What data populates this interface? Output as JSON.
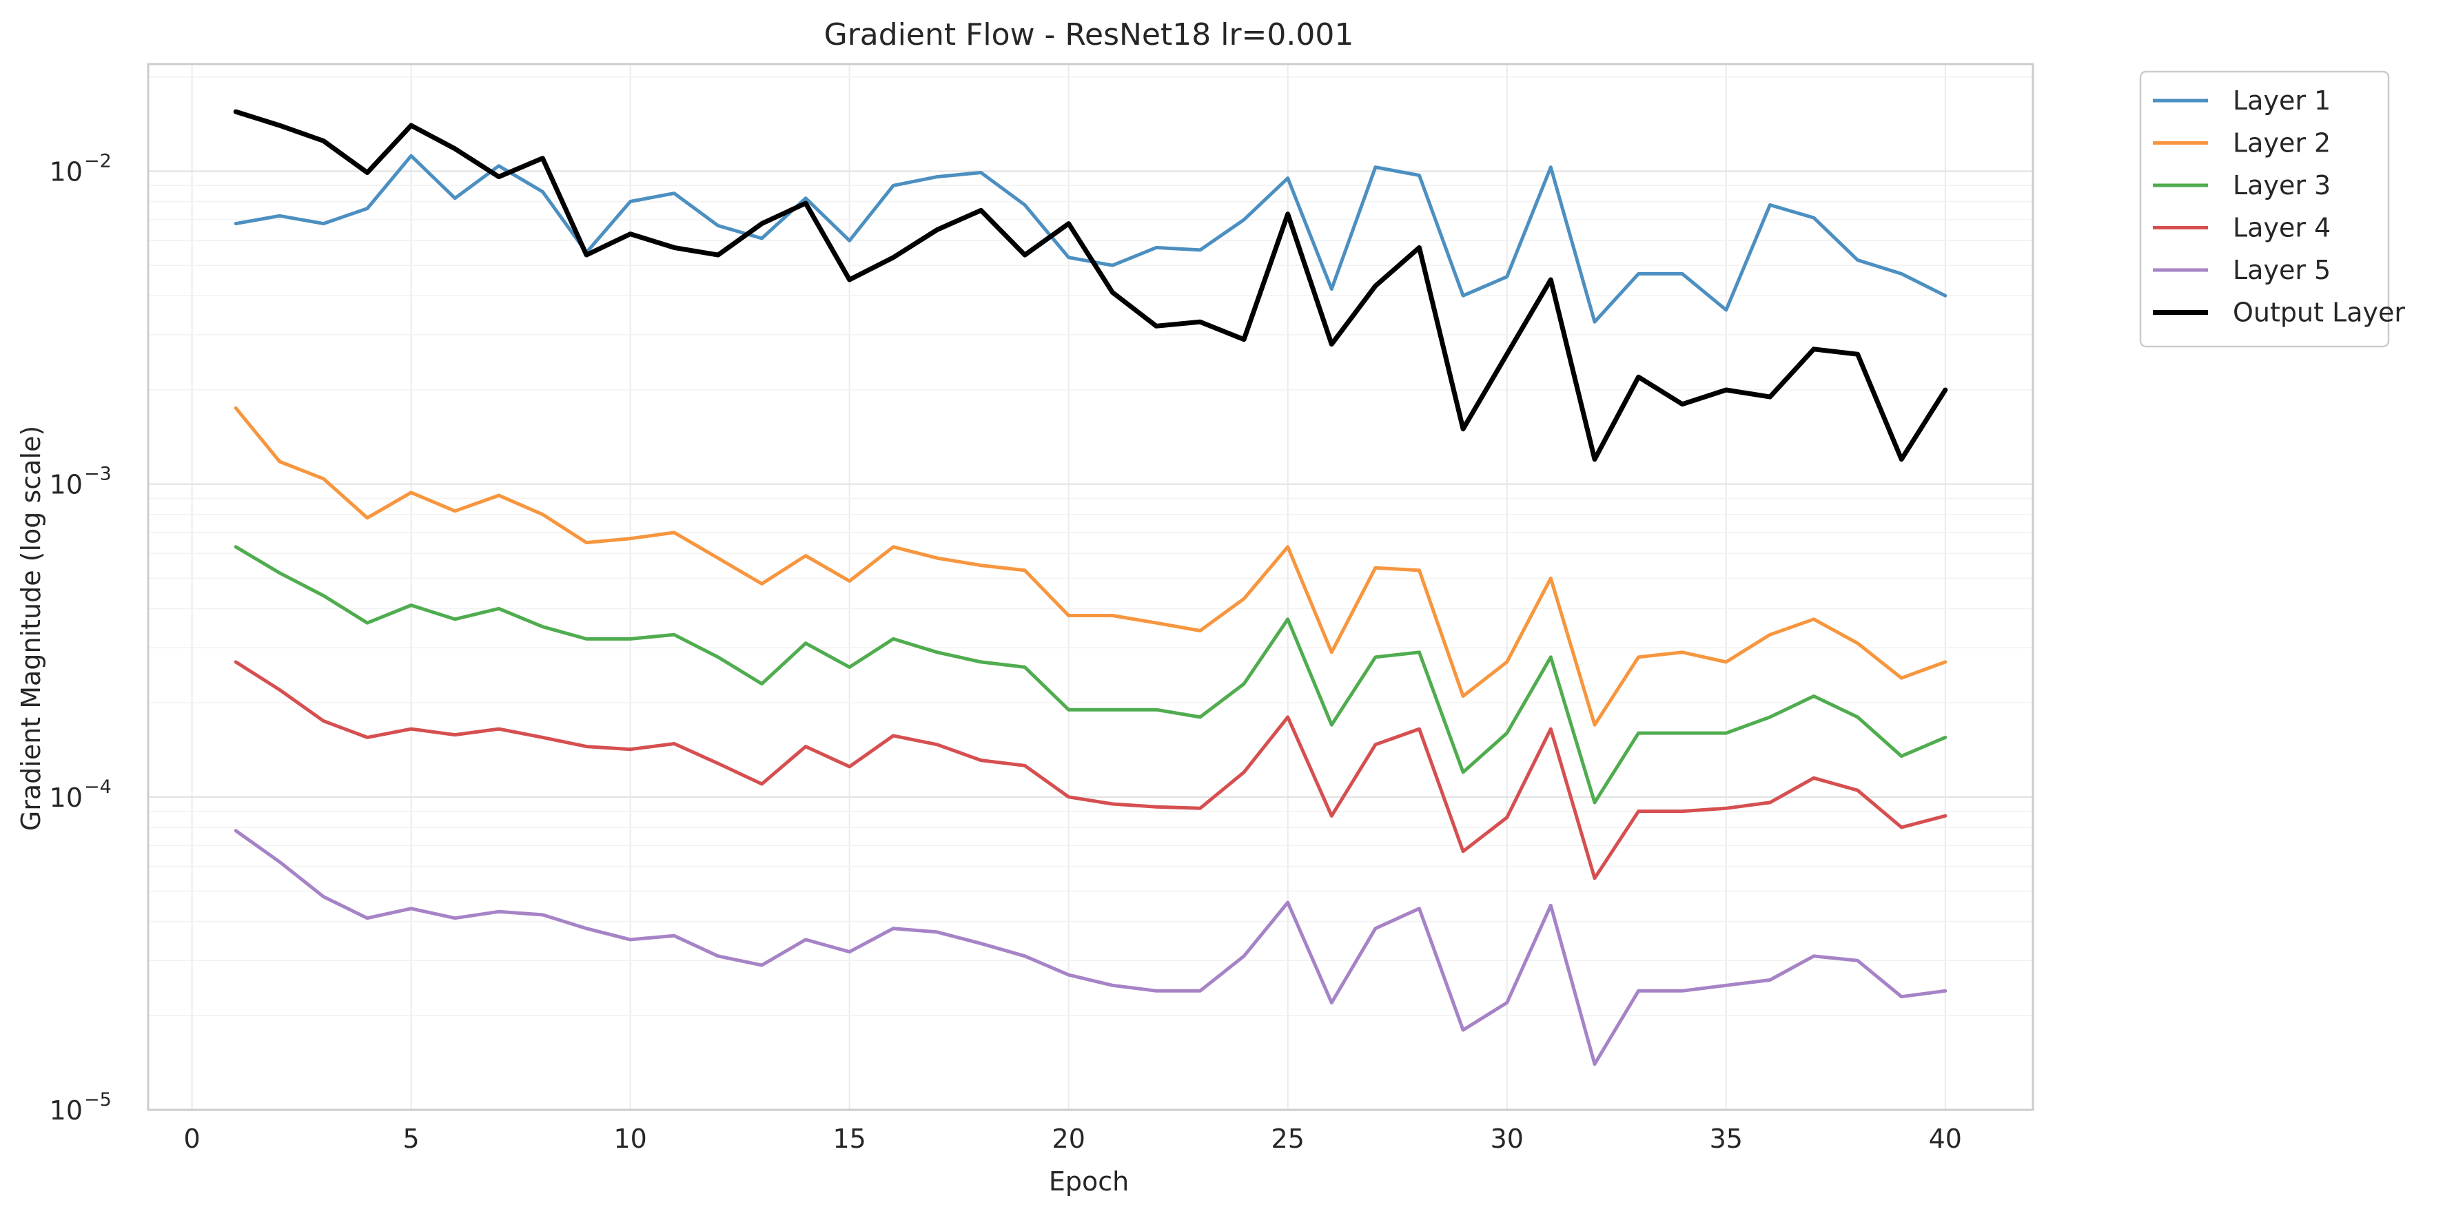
{
  "chart_data": {
    "type": "line",
    "title": "Gradient Flow - ResNet18 lr=0.001",
    "xlabel": "Epoch",
    "ylabel": "Gradient Magnitude (log scale)",
    "yscale": "log",
    "xlim": [
      -1,
      42
    ],
    "ylim": [
      1e-05,
      0.022
    ],
    "x_ticks": [
      0,
      5,
      10,
      15,
      20,
      25,
      30,
      35,
      40
    ],
    "y_ticks": [
      {
        "value": 1e-05,
        "base": "10",
        "exp": "−5"
      },
      {
        "value": 0.0001,
        "base": "10",
        "exp": "−4"
      },
      {
        "value": 0.001,
        "base": "10",
        "exp": "−3"
      },
      {
        "value": 0.01,
        "base": "10",
        "exp": "−2"
      }
    ],
    "grid": true,
    "legend_position": "outside-top-right",
    "x": [
      1,
      2,
      3,
      4,
      5,
      6,
      7,
      8,
      9,
      10,
      11,
      12,
      13,
      14,
      15,
      16,
      17,
      18,
      19,
      20,
      21,
      22,
      23,
      24,
      25,
      26,
      27,
      28,
      29,
      30,
      31,
      32,
      33,
      34,
      35,
      36,
      37,
      38,
      39,
      40
    ],
    "series": [
      {
        "name": "Layer 1",
        "color": "#4c8fc1",
        "width": "normal",
        "values": [
          0.0068,
          0.0072,
          0.0068,
          0.0076,
          0.0112,
          0.0082,
          0.0104,
          0.0086,
          0.0055,
          0.008,
          0.0085,
          0.0067,
          0.0061,
          0.0082,
          0.006,
          0.009,
          0.0096,
          0.0099,
          0.0078,
          0.0053,
          0.005,
          0.0057,
          0.0056,
          0.007,
          0.0095,
          0.0042,
          0.0103,
          0.0097,
          0.004,
          0.0046,
          0.0103,
          0.0033,
          0.0047,
          0.0047,
          0.0036,
          0.0078,
          0.0071,
          0.0052,
          0.0047,
          0.004
        ]
      },
      {
        "name": "Layer 2",
        "color": "#f7963e",
        "width": "normal",
        "values": [
          0.00175,
          0.00118,
          0.00104,
          0.00078,
          0.00094,
          0.00082,
          0.00092,
          0.0008,
          0.00065,
          0.00067,
          0.0007,
          0.00058,
          0.00048,
          0.00059,
          0.00049,
          0.00063,
          0.00058,
          0.00055,
          0.00053,
          0.00038,
          0.00038,
          0.00036,
          0.00034,
          0.00043,
          0.00063,
          0.00029,
          0.00054,
          0.00053,
          0.00021,
          0.00027,
          0.0005,
          0.00017,
          0.00028,
          0.00029,
          0.00027,
          0.00033,
          0.00037,
          0.00031,
          0.00024,
          0.00027
        ]
      },
      {
        "name": "Layer 3",
        "color": "#4fac4f",
        "width": "normal",
        "values": [
          0.00063,
          0.00052,
          0.00044,
          0.00036,
          0.00041,
          0.00037,
          0.0004,
          0.00035,
          0.00032,
          0.00032,
          0.00033,
          0.00028,
          0.00023,
          0.00031,
          0.00026,
          0.00032,
          0.00029,
          0.00027,
          0.00026,
          0.00019,
          0.00019,
          0.00019,
          0.00018,
          0.00023,
          0.00037,
          0.00017,
          0.00028,
          0.00029,
          0.00012,
          0.00016,
          0.00028,
          9.6e-05,
          0.00016,
          0.00016,
          0.00016,
          0.00018,
          0.00021,
          0.00018,
          0.000135,
          0.000155
        ]
      },
      {
        "name": "Layer 4",
        "color": "#d64f50",
        "width": "normal",
        "values": [
          0.00027,
          0.00022,
          0.000175,
          0.000155,
          0.000165,
          0.000158,
          0.000165,
          0.000155,
          0.000145,
          0.000142,
          0.000148,
          0.000128,
          0.00011,
          0.000145,
          0.000125,
          0.000157,
          0.000147,
          0.000131,
          0.000126,
          0.0001,
          9.5e-05,
          9.3e-05,
          9.2e-05,
          0.00012,
          0.00018,
          8.7e-05,
          0.000147,
          0.000165,
          6.7e-05,
          8.6e-05,
          0.000165,
          5.5e-05,
          9e-05,
          9e-05,
          9.2e-05,
          9.6e-05,
          0.000115,
          0.000105,
          8e-05,
          8.7e-05
        ]
      },
      {
        "name": "Layer 5",
        "color": "#a683c6",
        "width": "normal",
        "values": [
          7.8e-05,
          6.2e-05,
          4.8e-05,
          4.1e-05,
          4.4e-05,
          4.1e-05,
          4.3e-05,
          4.2e-05,
          3.8e-05,
          3.5e-05,
          3.6e-05,
          3.1e-05,
          2.9e-05,
          3.5e-05,
          3.2e-05,
          3.8e-05,
          3.7e-05,
          3.4e-05,
          3.1e-05,
          2.7e-05,
          2.5e-05,
          2.4e-05,
          2.4e-05,
          3.1e-05,
          4.6e-05,
          2.2e-05,
          3.8e-05,
          4.4e-05,
          1.8e-05,
          2.2e-05,
          4.5e-05,
          1.4e-05,
          2.4e-05,
          2.4e-05,
          2.5e-05,
          2.6e-05,
          3.1e-05,
          3e-05,
          2.3e-05,
          2.4e-05
        ]
      },
      {
        "name": "Output Layer",
        "color": "#000000",
        "width": "bold",
        "values": [
          0.0155,
          0.014,
          0.0125,
          0.0099,
          0.014,
          0.0118,
          0.0096,
          0.011,
          0.0054,
          0.0063,
          0.0057,
          0.0054,
          0.0068,
          0.0079,
          0.0045,
          0.0053,
          0.0065,
          0.0075,
          0.0054,
          0.0068,
          0.0041,
          0.0032,
          0.0033,
          0.0029,
          0.0073,
          0.0028,
          0.0043,
          0.0057,
          0.0015,
          0.0026,
          0.0045,
          0.0012,
          0.0022,
          0.0018,
          0.002,
          0.0019,
          0.0027,
          0.0026,
          0.0012,
          0.002
        ]
      }
    ]
  }
}
